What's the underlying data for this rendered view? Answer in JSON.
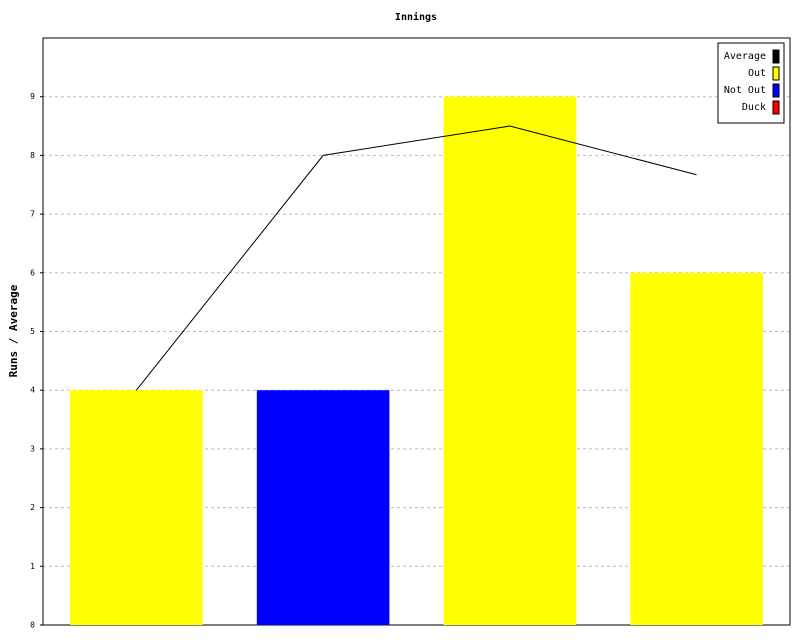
{
  "chart_data": {
    "type": "bar",
    "title": "Innings",
    "y_label": "Runs / Average",
    "categories": [
      null,
      null,
      null,
      null
    ],
    "series": [
      {
        "name": "Average",
        "type": "line",
        "color": "#000000",
        "values": [
          4,
          8,
          8.5,
          7.67
        ]
      },
      {
        "name": "Out",
        "type": "bar",
        "color": "#ffff00",
        "values": [
          4,
          null,
          9,
          6
        ]
      },
      {
        "name": "Not Out",
        "type": "bar",
        "color": "#0000ff",
        "values": [
          null,
          4,
          null,
          null
        ]
      },
      {
        "name": "Duck",
        "type": "bar",
        "color": "#ff0000",
        "values": [
          null,
          null,
          null,
          null
        ]
      }
    ],
    "ylim": [
      0,
      10
    ],
    "yticks": [
      0,
      1,
      2,
      3,
      4,
      5,
      6,
      7,
      8,
      9
    ],
    "grid": true,
    "legend": "top-right"
  }
}
